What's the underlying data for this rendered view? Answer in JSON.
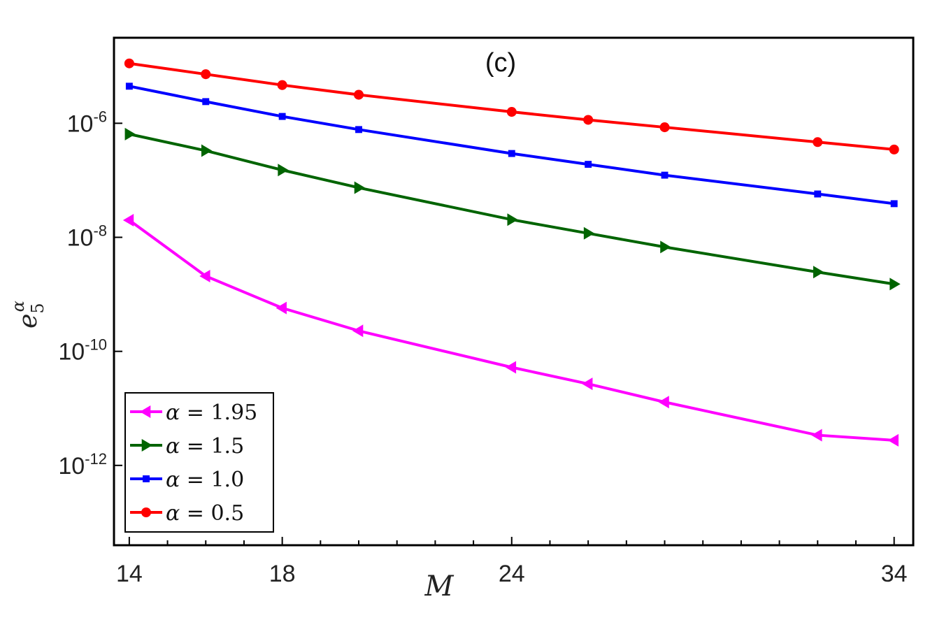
{
  "chart_data": {
    "type": "line",
    "title": "(c)",
    "xlabel": "M",
    "ylabel": {
      "base": "e",
      "sub": "5",
      "sup": "α"
    },
    "xlim": [
      13.6,
      34.5
    ],
    "ylim": [
      -13.4,
      -4.5
    ],
    "y_scale": "log",
    "xticks": [
      14,
      18,
      24,
      34
    ],
    "yticks": [
      {
        "value": -6,
        "base": "10",
        "exp": "-6"
      },
      {
        "value": -8,
        "base": "10",
        "exp": "-8"
      },
      {
        "value": -10,
        "base": "10",
        "exp": "-10"
      },
      {
        "value": -12,
        "base": "10",
        "exp": "-12"
      }
    ],
    "x": [
      14,
      16,
      18,
      20,
      24,
      26,
      28,
      32,
      34
    ],
    "legend": {
      "position": "bottom-left"
    },
    "series": [
      {
        "name": "α = 1.95",
        "alpha_label": "α",
        "value_label": "1.95",
        "color": "#ff00ff",
        "marker": "triangle-left",
        "log10_values": [
          -7.7,
          -8.68,
          -9.24,
          -9.64,
          -10.28,
          -10.57,
          -10.89,
          -11.47,
          -11.56
        ]
      },
      {
        "name": "α = 1.5",
        "alpha_label": "α",
        "value_label": "1.5",
        "color": "#006400",
        "marker": "triangle-right",
        "log10_values": [
          -6.19,
          -6.48,
          -6.82,
          -7.13,
          -7.69,
          -7.93,
          -8.17,
          -8.61,
          -8.82
        ]
      },
      {
        "name": "α = 1.0",
        "alpha_label": "α",
        "value_label": "1.0",
        "color": "#0000ff",
        "marker": "square",
        "log10_values": [
          -5.35,
          -5.62,
          -5.88,
          -6.11,
          -6.53,
          -6.72,
          -6.91,
          -7.24,
          -7.41
        ]
      },
      {
        "name": "α = 0.5",
        "alpha_label": "α",
        "value_label": "0.5",
        "color": "#ff0000",
        "marker": "circle",
        "log10_values": [
          -4.95,
          -5.14,
          -5.33,
          -5.5,
          -5.8,
          -5.94,
          -6.07,
          -6.33,
          -6.46
        ]
      }
    ]
  }
}
